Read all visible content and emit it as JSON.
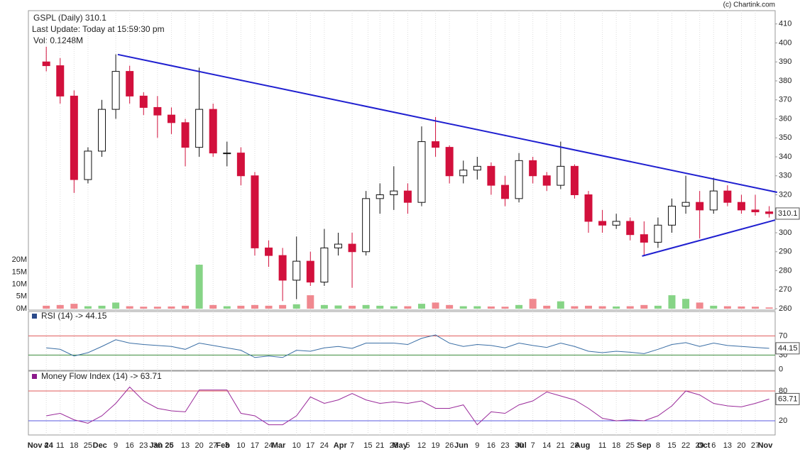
{
  "chart_data": [
    {
      "type": "candlestick",
      "title": "GSPL (Daily) 310.1",
      "subtitle": "Last Update: Today at 15:59:30 pm",
      "volume_label": "Vol: 0.1248M",
      "credit": "(c) Chartink.com",
      "x": [
        "2024-11-04",
        "2024-11-11",
        "2024-11-18",
        "2024-11-25",
        "2024-12-02",
        "2024-12-09",
        "2024-12-16",
        "2024-12-23",
        "2024-12-30",
        "2025-01-06",
        "2025-01-13",
        "2025-01-20",
        "2025-01-27",
        "2025-02-03",
        "2025-02-10",
        "2025-02-17",
        "2025-02-24",
        "2025-03-03",
        "2025-03-10",
        "2025-03-17",
        "2025-03-24",
        "2025-03-31",
        "2025-04-07",
        "2025-04-14",
        "2025-04-21",
        "2025-04-28",
        "2025-05-05",
        "2025-05-12",
        "2025-05-19",
        "2025-05-26",
        "2025-06-02",
        "2025-06-09",
        "2025-06-16",
        "2025-06-23",
        "2025-06-30",
        "2025-07-07",
        "2025-07-14",
        "2025-07-21",
        "2025-07-28",
        "2025-08-04",
        "2025-08-11",
        "2025-08-18",
        "2025-08-25",
        "2025-09-01",
        "2025-09-08",
        "2025-09-15",
        "2025-09-22",
        "2025-09-29",
        "2025-10-06",
        "2025-10-13",
        "2025-10-20",
        "2025-10-27",
        "2025-11-03"
      ],
      "open": [
        390,
        388,
        372,
        328,
        343,
        365,
        385,
        372,
        366,
        362,
        358,
        345,
        365,
        342,
        342,
        330,
        292,
        288,
        275,
        285,
        274,
        292,
        294,
        290,
        318,
        320,
        322,
        316,
        348,
        345,
        330,
        333,
        335,
        325,
        318,
        338,
        330,
        325,
        335,
        320,
        306,
        304,
        306,
        299,
        295,
        304,
        314,
        316,
        312,
        322,
        316,
        312,
        311
      ],
      "high": [
        398,
        392,
        375,
        345,
        370,
        394,
        388,
        374,
        372,
        366,
        360,
        387,
        368,
        348,
        345,
        332,
        296,
        292,
        298,
        290,
        302,
        300,
        300,
        322,
        326,
        335,
        326,
        356,
        361,
        346,
        338,
        340,
        337,
        330,
        342,
        340,
        332,
        348,
        336,
        322,
        312,
        310,
        308,
        306,
        308,
        318,
        330,
        322,
        329,
        325,
        320,
        320,
        314
      ],
      "low": [
        385,
        368,
        321,
        326,
        340,
        360,
        368,
        362,
        350,
        352,
        335,
        340,
        340,
        335,
        325,
        288,
        282,
        264,
        265,
        272,
        272,
        288,
        271,
        288,
        310,
        312,
        310,
        314,
        340,
        326,
        326,
        328,
        320,
        314,
        316,
        326,
        322,
        323,
        318,
        300,
        300,
        302,
        296,
        288,
        292,
        300,
        310,
        297,
        310,
        314,
        310,
        309,
        308
      ],
      "close": [
        388,
        372,
        328,
        343,
        365,
        385,
        372,
        366,
        362,
        358,
        345,
        365,
        342,
        342,
        330,
        292,
        288,
        275,
        285,
        274,
        292,
        294,
        290,
        318,
        320,
        322,
        316,
        348,
        345,
        330,
        333,
        335,
        325,
        318,
        338,
        330,
        325,
        335,
        320,
        306,
        304,
        306,
        299,
        295,
        304,
        314,
        316,
        312,
        322,
        316,
        312,
        311,
        310.1
      ],
      "up_color": "#ffffff",
      "down_color": "#d2103c",
      "xlim": [
        "2024-10-26",
        "2025-11-06"
      ],
      "ylim": [
        260,
        417
      ],
      "yticks": [
        260,
        270,
        280,
        290,
        300,
        310,
        320,
        330,
        340,
        350,
        360,
        370,
        380,
        390,
        400,
        410
      ],
      "xticks": [
        {
          "value": "2024-11-04",
          "label": "4"
        },
        {
          "value": "2024-11-11",
          "label": "11"
        },
        {
          "value": "2024-11-18",
          "label": "18"
        },
        {
          "value": "2024-11-25",
          "label": "25"
        },
        {
          "value": "2024-12-09",
          "label": "9"
        },
        {
          "value": "2024-12-16",
          "label": "16"
        },
        {
          "value": "2024-12-23",
          "label": "23"
        },
        {
          "value": "2024-12-30",
          "label": "30"
        },
        {
          "value": "2025-01-06",
          "label": "6"
        },
        {
          "value": "2025-01-13",
          "label": "13"
        },
        {
          "value": "2025-01-20",
          "label": "20"
        },
        {
          "value": "2025-01-27",
          "label": "27"
        },
        {
          "value": "2025-02-03",
          "label": "3"
        },
        {
          "value": "2025-02-10",
          "label": "10"
        },
        {
          "value": "2025-02-17",
          "label": "17"
        },
        {
          "value": "2025-02-24",
          "label": "24"
        },
        {
          "value": "2025-03-10",
          "label": "10"
        },
        {
          "value": "2025-03-17",
          "label": "17"
        },
        {
          "value": "2025-03-24",
          "label": "24"
        },
        {
          "value": "2025-04-07",
          "label": "7"
        },
        {
          "value": "2025-04-15",
          "label": "15"
        },
        {
          "value": "2025-04-21",
          "label": "21"
        },
        {
          "value": "2025-04-28",
          "label": "28"
        },
        {
          "value": "2025-05-05",
          "label": "5"
        },
        {
          "value": "2025-05-12",
          "label": "12"
        },
        {
          "value": "2025-05-19",
          "label": "19"
        },
        {
          "value": "2025-05-26",
          "label": "26"
        },
        {
          "value": "2025-06-09",
          "label": "9"
        },
        {
          "value": "2025-06-16",
          "label": "16"
        },
        {
          "value": "2025-06-23",
          "label": "23"
        },
        {
          "value": "2025-06-30",
          "label": "30"
        },
        {
          "value": "2025-07-07",
          "label": "7"
        },
        {
          "value": "2025-07-14",
          "label": "14"
        },
        {
          "value": "2025-07-21",
          "label": "21"
        },
        {
          "value": "2025-07-28",
          "label": "28"
        },
        {
          "value": "2025-08-11",
          "label": "11"
        },
        {
          "value": "2025-08-18",
          "label": "18"
        },
        {
          "value": "2025-08-25",
          "label": "25"
        },
        {
          "value": "2025-09-08",
          "label": "8"
        },
        {
          "value": "2025-09-15",
          "label": "15"
        },
        {
          "value": "2025-09-22",
          "label": "22"
        },
        {
          "value": "2025-09-29",
          "label": "29"
        },
        {
          "value": "2025-10-06",
          "label": "6"
        },
        {
          "value": "2025-10-13",
          "label": "13"
        },
        {
          "value": "2025-10-20",
          "label": "20"
        },
        {
          "value": "2025-10-27",
          "label": "27"
        }
      ],
      "month_ticks": [
        {
          "value": "2024-11-01",
          "label": "Nov 24"
        },
        {
          "value": "2024-12-01",
          "label": "Dec"
        },
        {
          "value": "2025-01-01",
          "label": "Jan 25"
        },
        {
          "value": "2025-02-01",
          "label": "Feb"
        },
        {
          "value": "2025-03-01",
          "label": "Mar"
        },
        {
          "value": "2025-04-01",
          "label": "Apr"
        },
        {
          "value": "2025-05-01",
          "label": "May"
        },
        {
          "value": "2025-06-01",
          "label": "Jun"
        },
        {
          "value": "2025-07-01",
          "label": "Jul"
        },
        {
          "value": "2025-08-01",
          "label": "Aug"
        },
        {
          "value": "2025-09-01",
          "label": "Sep"
        },
        {
          "value": "2025-10-01",
          "label": "Oct"
        },
        {
          "value": "2025-11-01",
          "label": "Nov"
        }
      ],
      "grid": "x",
      "trendlines": [
        {
          "color": "#1f1fd0",
          "x": [
            "2024-12-10",
            "2025-11-07"
          ],
          "y": [
            393.9,
            321.3
          ]
        },
        {
          "color": "#1f1fd0",
          "x": [
            "2025-08-31",
            "2025-11-06"
          ],
          "y": [
            287.7,
            306.7
          ]
        }
      ]
    },
    {
      "type": "bar",
      "values": [
        1.2,
        1.5,
        2.0,
        1.0,
        1.2,
        2.5,
        1.0,
        0.8,
        0.8,
        0.9,
        1.2,
        18,
        1.5,
        1.0,
        1.2,
        1.5,
        1.2,
        1.5,
        1.8,
        5.5,
        1.5,
        1.3,
        1.2,
        1.5,
        1.2,
        1.0,
        1.0,
        2.0,
        2.5,
        1.5,
        1.0,
        1.0,
        0.9,
        0.8,
        1.5,
        4.0,
        1.2,
        3.0,
        1.0,
        1.2,
        1.0,
        0.9,
        1.0,
        1.5,
        1.2,
        5.5,
        4.0,
        2.5,
        1.2,
        1.0,
        0.9,
        0.8,
        0.5
      ],
      "up_color": "#86d486",
      "down_color": "#f0888f",
      "ylim": [
        0,
        122
      ],
      "yticks": [
        {
          "value": 0,
          "label": "0M"
        },
        {
          "value": 5,
          "label": "5M"
        },
        {
          "value": 10,
          "label": "10M"
        },
        {
          "value": 15,
          "label": "15M"
        },
        {
          "value": 20,
          "label": "20M"
        }
      ]
    },
    {
      "type": "line",
      "title": "RSI (14) -> 44.15",
      "color": "#3a6ea5",
      "legend_color": "#2a4a8a",
      "values": [
        45,
        42,
        28,
        35,
        48,
        62,
        55,
        52,
        50,
        48,
        42,
        55,
        50,
        45,
        40,
        25,
        28,
        25,
        40,
        38,
        45,
        48,
        44,
        55,
        55,
        55,
        52,
        65,
        72,
        55,
        48,
        52,
        50,
        45,
        55,
        50,
        46,
        55,
        48,
        38,
        35,
        38,
        36,
        33,
        42,
        52,
        56,
        48,
        55,
        50,
        48,
        46,
        44.15
      ],
      "ylim": [
        -2,
        118
      ],
      "yticks": [
        0,
        30,
        70
      ],
      "reference_lines": [
        {
          "value": 30,
          "color": "#3a8a3a"
        },
        {
          "value": 70,
          "color": "#e05a5a"
        }
      ]
    },
    {
      "type": "line",
      "title": "Money Flow Index (14) -> 63.71",
      "color": "#9a2a9a",
      "legend_color": "#8b1a8b",
      "values": [
        30,
        35,
        22,
        15,
        30,
        55,
        88,
        60,
        45,
        40,
        38,
        82,
        82,
        82,
        35,
        30,
        12,
        12,
        30,
        68,
        55,
        62,
        75,
        62,
        55,
        58,
        55,
        60,
        45,
        45,
        52,
        12,
        38,
        35,
        52,
        60,
        78,
        70,
        62,
        45,
        25,
        20,
        22,
        20,
        30,
        50,
        80,
        72,
        55,
        50,
        48,
        55,
        63.71
      ],
      "ylim": [
        0,
        120
      ],
      "yticks": [
        20,
        80
      ],
      "reference_lines": [
        {
          "value": 20,
          "color": "#5a5ae0"
        },
        {
          "value": 80,
          "color": "#e05a5a"
        }
      ]
    }
  ]
}
